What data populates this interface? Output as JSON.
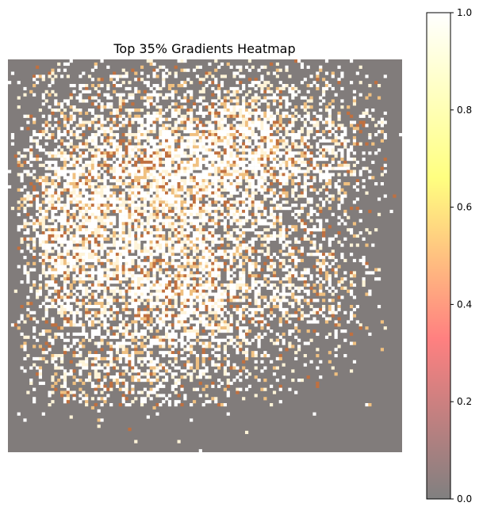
{
  "chart_data": {
    "type": "heatmap",
    "title": "Top 35% Gradients Heatmap",
    "xlabel": "",
    "ylabel": "",
    "grid": false,
    "axes_visible": false,
    "colormap": [
      "#808080",
      "#ff8080",
      "#ffff80",
      "#ffffff"
    ],
    "background_value_color": "#817c7b",
    "colorbar": {
      "range": [
        0.0,
        1.0
      ],
      "ticks": [
        0.0,
        0.2,
        0.4,
        0.6,
        0.8,
        1.0
      ],
      "tick_labels": [
        "0.0",
        "0.2",
        "0.4",
        "0.6",
        "0.8",
        "1.0"
      ]
    },
    "grid_size": 128,
    "threshold_percent": 35,
    "value_levels": [
      0.0,
      0.55,
      0.8,
      1.0
    ],
    "density_blobs": [
      {
        "cx": 0.35,
        "cy": 0.3,
        "rx": 0.3,
        "ry": 0.28,
        "w": 1.0
      },
      {
        "cx": 0.68,
        "cy": 0.22,
        "rx": 0.26,
        "ry": 0.18,
        "w": 0.9
      },
      {
        "cx": 0.45,
        "cy": 0.62,
        "rx": 0.28,
        "ry": 0.22,
        "w": 0.9
      },
      {
        "cx": 0.15,
        "cy": 0.45,
        "rx": 0.12,
        "ry": 0.3,
        "w": 0.6
      },
      {
        "cx": 0.78,
        "cy": 0.55,
        "rx": 0.12,
        "ry": 0.15,
        "w": 0.5
      },
      {
        "cx": 0.25,
        "cy": 0.82,
        "rx": 0.2,
        "ry": 0.1,
        "w": 0.5
      }
    ]
  }
}
